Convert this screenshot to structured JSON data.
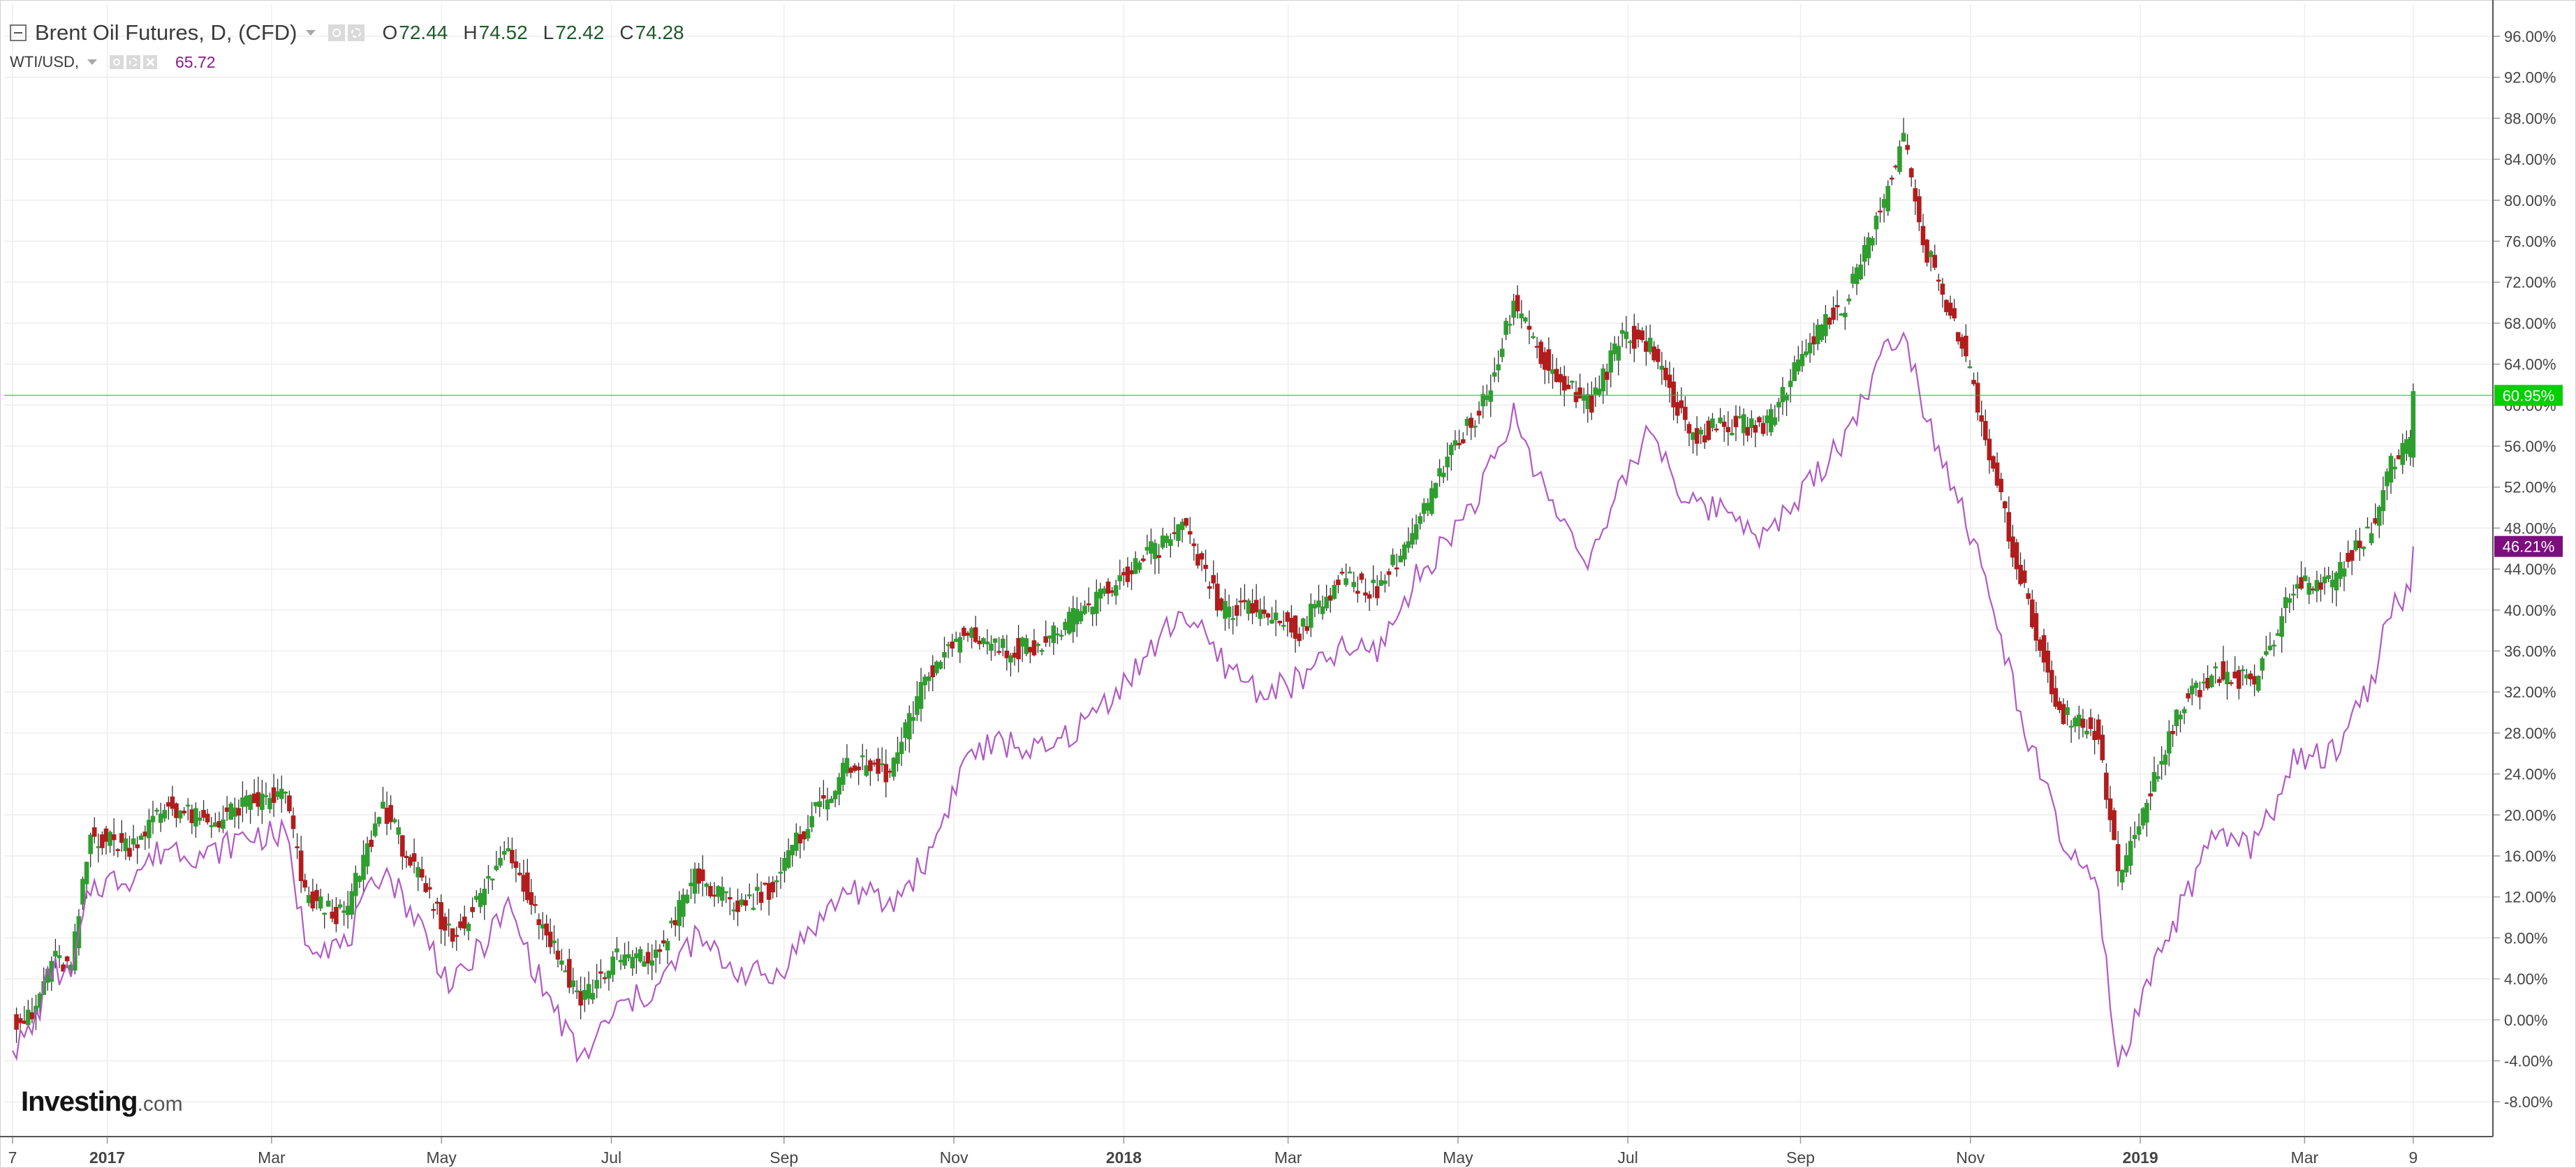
{
  "legend": {
    "main": {
      "title": "Brent Oil Futures, D, (CFD)",
      "open_key": "O",
      "open": "72.44",
      "high_key": "H",
      "high": "74.52",
      "low_key": "L",
      "low": "72.42",
      "close_key": "C",
      "close": "74.28"
    },
    "secondary": {
      "title": "WTI/USD,",
      "value": "65.72"
    }
  },
  "brand": {
    "main": "Investing",
    "sub": ".com"
  },
  "colors": {
    "up": "#2e9e2e",
    "down": "#b21c1c",
    "wti_line": "#b159c5",
    "current_line": "#00dd00",
    "brent_tag": "#00d000",
    "wti_tag": "#7d0e7d",
    "grid": "#eeeeee"
  },
  "icons": [
    "collapse-icon",
    "caret-down-icon",
    "eye-icon",
    "gear-icon",
    "close-icon"
  ],
  "chart_data": {
    "type": "line",
    "y_axis": {
      "unit": "percent change",
      "ylim": [
        -10,
        98
      ],
      "tick_labels": [
        "-8.00%",
        "-4.00%",
        "0.00%",
        "4.00%",
        "8.00%",
        "12.00%",
        "16.00%",
        "20.00%",
        "24.00%",
        "28.00%",
        "32.00%",
        "36.00%",
        "40.00%",
        "44.00%",
        "48.00%",
        "52.00%",
        "56.00%",
        "60.00%",
        "64.00%",
        "68.00%",
        "72.00%",
        "76.00%",
        "80.00%",
        "84.00%",
        "88.00%",
        "92.00%",
        "96.00%"
      ],
      "side": "right"
    },
    "x_axis": {
      "xlim": [
        "2016-11-27",
        "2019-03-31"
      ],
      "ticks": [
        {
          "label": "7",
          "date": "2016-11-28"
        },
        {
          "label": "2017",
          "date": "2017-01-01",
          "bold": true
        },
        {
          "label": "Mar",
          "date": "2017-03-01"
        },
        {
          "label": "May",
          "date": "2017-05-01"
        },
        {
          "label": "Jul",
          "date": "2017-07-01"
        },
        {
          "label": "Sep",
          "date": "2017-09-01"
        },
        {
          "label": "Nov",
          "date": "2017-11-01"
        },
        {
          "label": "2018",
          "date": "2018-01-01",
          "bold": true
        },
        {
          "label": "Mar",
          "date": "2018-03-01"
        },
        {
          "label": "May",
          "date": "2018-05-01"
        },
        {
          "label": "Jul",
          "date": "2018-07-01"
        },
        {
          "label": "Sep",
          "date": "2018-09-01"
        },
        {
          "label": "Nov",
          "date": "2018-11-01"
        },
        {
          "label": "2019",
          "date": "2019-01-01",
          "bold": true
        },
        {
          "label": "Mar",
          "date": "2019-03-01"
        },
        {
          "label": "9",
          "date": "2019-04-09"
        }
      ]
    },
    "series": [
      {
        "name": "Brent Oil Futures, D, (CFD)",
        "style": "candlestick",
        "points": [
          [
            "2016-11-28",
            0
          ],
          [
            "2016-12-05",
            0
          ],
          [
            "2016-12-12",
            6
          ],
          [
            "2016-12-19",
            5
          ],
          [
            "2016-12-26",
            18
          ],
          [
            "2017-01-09",
            17
          ],
          [
            "2017-01-23",
            21
          ],
          [
            "2017-02-06",
            19
          ],
          [
            "2017-02-20",
            21
          ],
          [
            "2017-03-06",
            22
          ],
          [
            "2017-03-13",
            12
          ],
          [
            "2017-03-27",
            10
          ],
          [
            "2017-04-10",
            21
          ],
          [
            "2017-04-24",
            13
          ],
          [
            "2017-05-05",
            8
          ],
          [
            "2017-05-15",
            12
          ],
          [
            "2017-05-25",
            17
          ],
          [
            "2017-06-05",
            10
          ],
          [
            "2017-06-20",
            2
          ],
          [
            "2017-07-03",
            6
          ],
          [
            "2017-07-17",
            6
          ],
          [
            "2017-07-31",
            14
          ],
          [
            "2017-08-14",
            11
          ],
          [
            "2017-08-28",
            13
          ],
          [
            "2017-09-11",
            20
          ],
          [
            "2017-09-25",
            25
          ],
          [
            "2017-10-09",
            24
          ],
          [
            "2017-10-23",
            34
          ],
          [
            "2017-11-06",
            38
          ],
          [
            "2017-11-20",
            36
          ],
          [
            "2017-12-04",
            37
          ],
          [
            "2017-12-18",
            40
          ],
          [
            "2018-01-08",
            45
          ],
          [
            "2018-01-22",
            48
          ],
          [
            "2018-02-05",
            40
          ],
          [
            "2018-02-19",
            40
          ],
          [
            "2018-03-05",
            38
          ],
          [
            "2018-03-19",
            43
          ],
          [
            "2018-04-02",
            42
          ],
          [
            "2018-04-16",
            48
          ],
          [
            "2018-04-30",
            56
          ],
          [
            "2018-05-10",
            60
          ],
          [
            "2018-05-21",
            70
          ],
          [
            "2018-06-04",
            63
          ],
          [
            "2018-06-18",
            60
          ],
          [
            "2018-06-29",
            67
          ],
          [
            "2018-07-09",
            66
          ],
          [
            "2018-07-23",
            57
          ],
          [
            "2018-08-06",
            58
          ],
          [
            "2018-08-20",
            58
          ],
          [
            "2018-09-03",
            66
          ],
          [
            "2018-09-17",
            70
          ],
          [
            "2018-10-01",
            80
          ],
          [
            "2018-10-08",
            86
          ],
          [
            "2018-10-15",
            76
          ],
          [
            "2018-10-29",
            66
          ],
          [
            "2018-11-05",
            58
          ],
          [
            "2018-11-19",
            43
          ],
          [
            "2018-12-03",
            30
          ],
          [
            "2018-12-17",
            28
          ],
          [
            "2018-12-24",
            14
          ],
          [
            "2019-01-02",
            20
          ],
          [
            "2019-01-14",
            30
          ],
          [
            "2019-01-28",
            34
          ],
          [
            "2019-02-11",
            33
          ],
          [
            "2019-02-25",
            42
          ],
          [
            "2019-03-11",
            43
          ],
          [
            "2019-03-25",
            48
          ],
          [
            "2019-04-01",
            54
          ],
          [
            "2019-04-08",
            56
          ],
          [
            "2019-04-09",
            60.95
          ]
        ],
        "last_label": "60.95%"
      },
      {
        "name": "WTI/USD,",
        "style": "line",
        "points": [
          [
            "2016-11-28",
            -3
          ],
          [
            "2016-12-05",
            -1
          ],
          [
            "2016-12-12",
            5
          ],
          [
            "2016-12-19",
            4
          ],
          [
            "2016-12-26",
            13
          ],
          [
            "2017-01-09",
            14
          ],
          [
            "2017-01-23",
            17
          ],
          [
            "2017-02-06",
            16
          ],
          [
            "2017-02-20",
            18
          ],
          [
            "2017-03-06",
            18
          ],
          [
            "2017-03-13",
            8
          ],
          [
            "2017-03-27",
            7
          ],
          [
            "2017-04-10",
            15
          ],
          [
            "2017-04-24",
            9
          ],
          [
            "2017-05-05",
            3
          ],
          [
            "2017-05-15",
            7
          ],
          [
            "2017-05-25",
            11
          ],
          [
            "2017-06-05",
            4
          ],
          [
            "2017-06-20",
            -4
          ],
          [
            "2017-07-03",
            1
          ],
          [
            "2017-07-17",
            3
          ],
          [
            "2017-07-31",
            8
          ],
          [
            "2017-08-14",
            5
          ],
          [
            "2017-08-28",
            4
          ],
          [
            "2017-09-11",
            9
          ],
          [
            "2017-09-25",
            13
          ],
          [
            "2017-10-09",
            11
          ],
          [
            "2017-10-23",
            16
          ],
          [
            "2017-11-06",
            26
          ],
          [
            "2017-11-20",
            27
          ],
          [
            "2017-12-04",
            26
          ],
          [
            "2017-12-18",
            29
          ],
          [
            "2018-01-08",
            35
          ],
          [
            "2018-01-22",
            40
          ],
          [
            "2018-02-05",
            35
          ],
          [
            "2018-02-19",
            32
          ],
          [
            "2018-03-05",
            33
          ],
          [
            "2018-03-19",
            36
          ],
          [
            "2018-04-02",
            36
          ],
          [
            "2018-04-16",
            43
          ],
          [
            "2018-04-30",
            48
          ],
          [
            "2018-05-10",
            52
          ],
          [
            "2018-05-21",
            59
          ],
          [
            "2018-06-04",
            50
          ],
          [
            "2018-06-18",
            45
          ],
          [
            "2018-06-29",
            52
          ],
          [
            "2018-07-09",
            58
          ],
          [
            "2018-07-23",
            50
          ],
          [
            "2018-08-06",
            50
          ],
          [
            "2018-08-20",
            47
          ],
          [
            "2018-09-03",
            52
          ],
          [
            "2018-09-17",
            57
          ],
          [
            "2018-10-01",
            65
          ],
          [
            "2018-10-08",
            68
          ],
          [
            "2018-10-15",
            60
          ],
          [
            "2018-10-29",
            50
          ],
          [
            "2018-11-05",
            44
          ],
          [
            "2018-11-19",
            30
          ],
          [
            "2018-12-03",
            18
          ],
          [
            "2018-12-17",
            12
          ],
          [
            "2018-12-24",
            -5
          ],
          [
            "2019-01-02",
            2
          ],
          [
            "2019-01-14",
            10
          ],
          [
            "2019-01-28",
            18
          ],
          [
            "2019-02-11",
            17
          ],
          [
            "2019-02-25",
            25
          ],
          [
            "2019-03-11",
            26
          ],
          [
            "2019-03-25",
            33
          ],
          [
            "2019-04-01",
            40
          ],
          [
            "2019-04-08",
            42
          ],
          [
            "2019-04-09",
            46.21
          ]
        ],
        "last_label": "46.21%"
      }
    ],
    "current_value_line": 60.95,
    "grid": true,
    "legend": "top-left"
  }
}
